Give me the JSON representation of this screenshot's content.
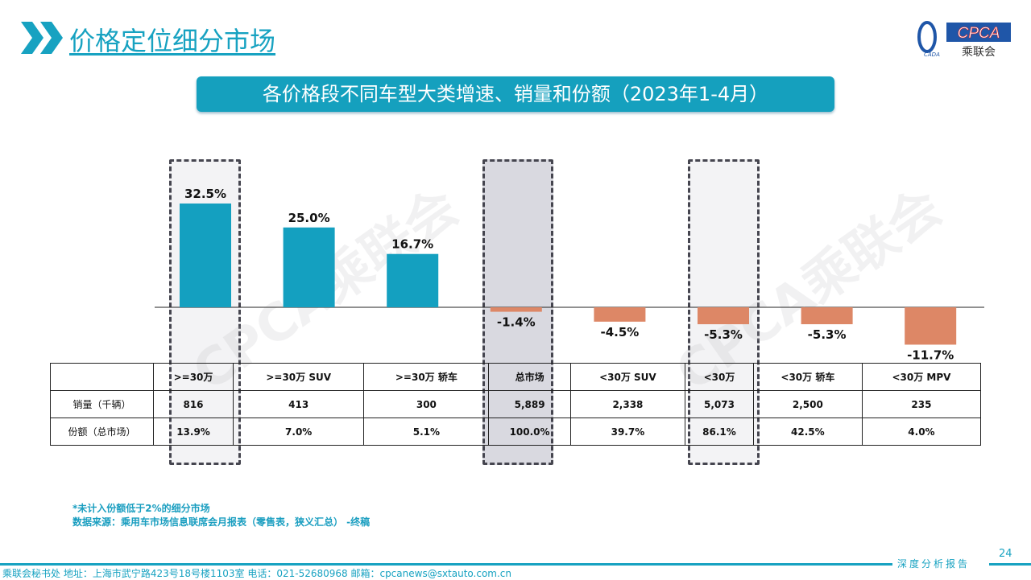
{
  "header": {
    "title": "价格定位细分市场",
    "logo_text": "CPCA",
    "logo_sub": "乘联会",
    "logo_small": "CADA"
  },
  "banner": "各价格段不同车型大类增速、销量和份额（2023年1-4月）",
  "watermark": "CPCA乘联会",
  "colors": {
    "positive": "#14a0c0",
    "negative": "#dd8766",
    "accent": "#17a2c1"
  },
  "chart_data": {
    "type": "bar",
    "categories": [
      ">=30万",
      ">=30万 SUV",
      ">=30万 轿车",
      "总市场",
      "<30万 SUV",
      "<30万",
      "<30万 轿车",
      "<30万 MPV"
    ],
    "values": [
      32.5,
      25.0,
      16.7,
      -1.4,
      -4.5,
      -5.3,
      -5.3,
      -11.7
    ],
    "labels": [
      "32.5%",
      "25.0%",
      "16.7%",
      "-1.4%",
      "-4.5%",
      "-5.3%",
      "-5.3%",
      "-11.7%"
    ],
    "highlighted": [
      ">=30万",
      "总市场",
      "<30万"
    ],
    "unit": "%"
  },
  "table": {
    "rows": [
      {
        "label": "销量（千辆）",
        "values": [
          "816",
          "413",
          "300",
          "5,889",
          "2,338",
          "5,073",
          "2,500",
          "235"
        ]
      },
      {
        "label": "份额（总市场）",
        "values": [
          "13.9%",
          "7.0%",
          "5.1%",
          "100.0%",
          "39.7%",
          "86.1%",
          "42.5%",
          "4.0%"
        ]
      }
    ]
  },
  "notes": [
    "*未计入份额低于2%的细分市场",
    "数据来源：乘用车市场信息联席会月报表（零售表，狭义汇总） -终稿"
  ],
  "footer": {
    "text": "乘联会秘书处   地址：上海市武宁路423号18号楼1103室  电话：021-52680968   邮箱：cpcanews@sxtauto.com.cn",
    "report": "深度分析报告",
    "page": "24"
  }
}
